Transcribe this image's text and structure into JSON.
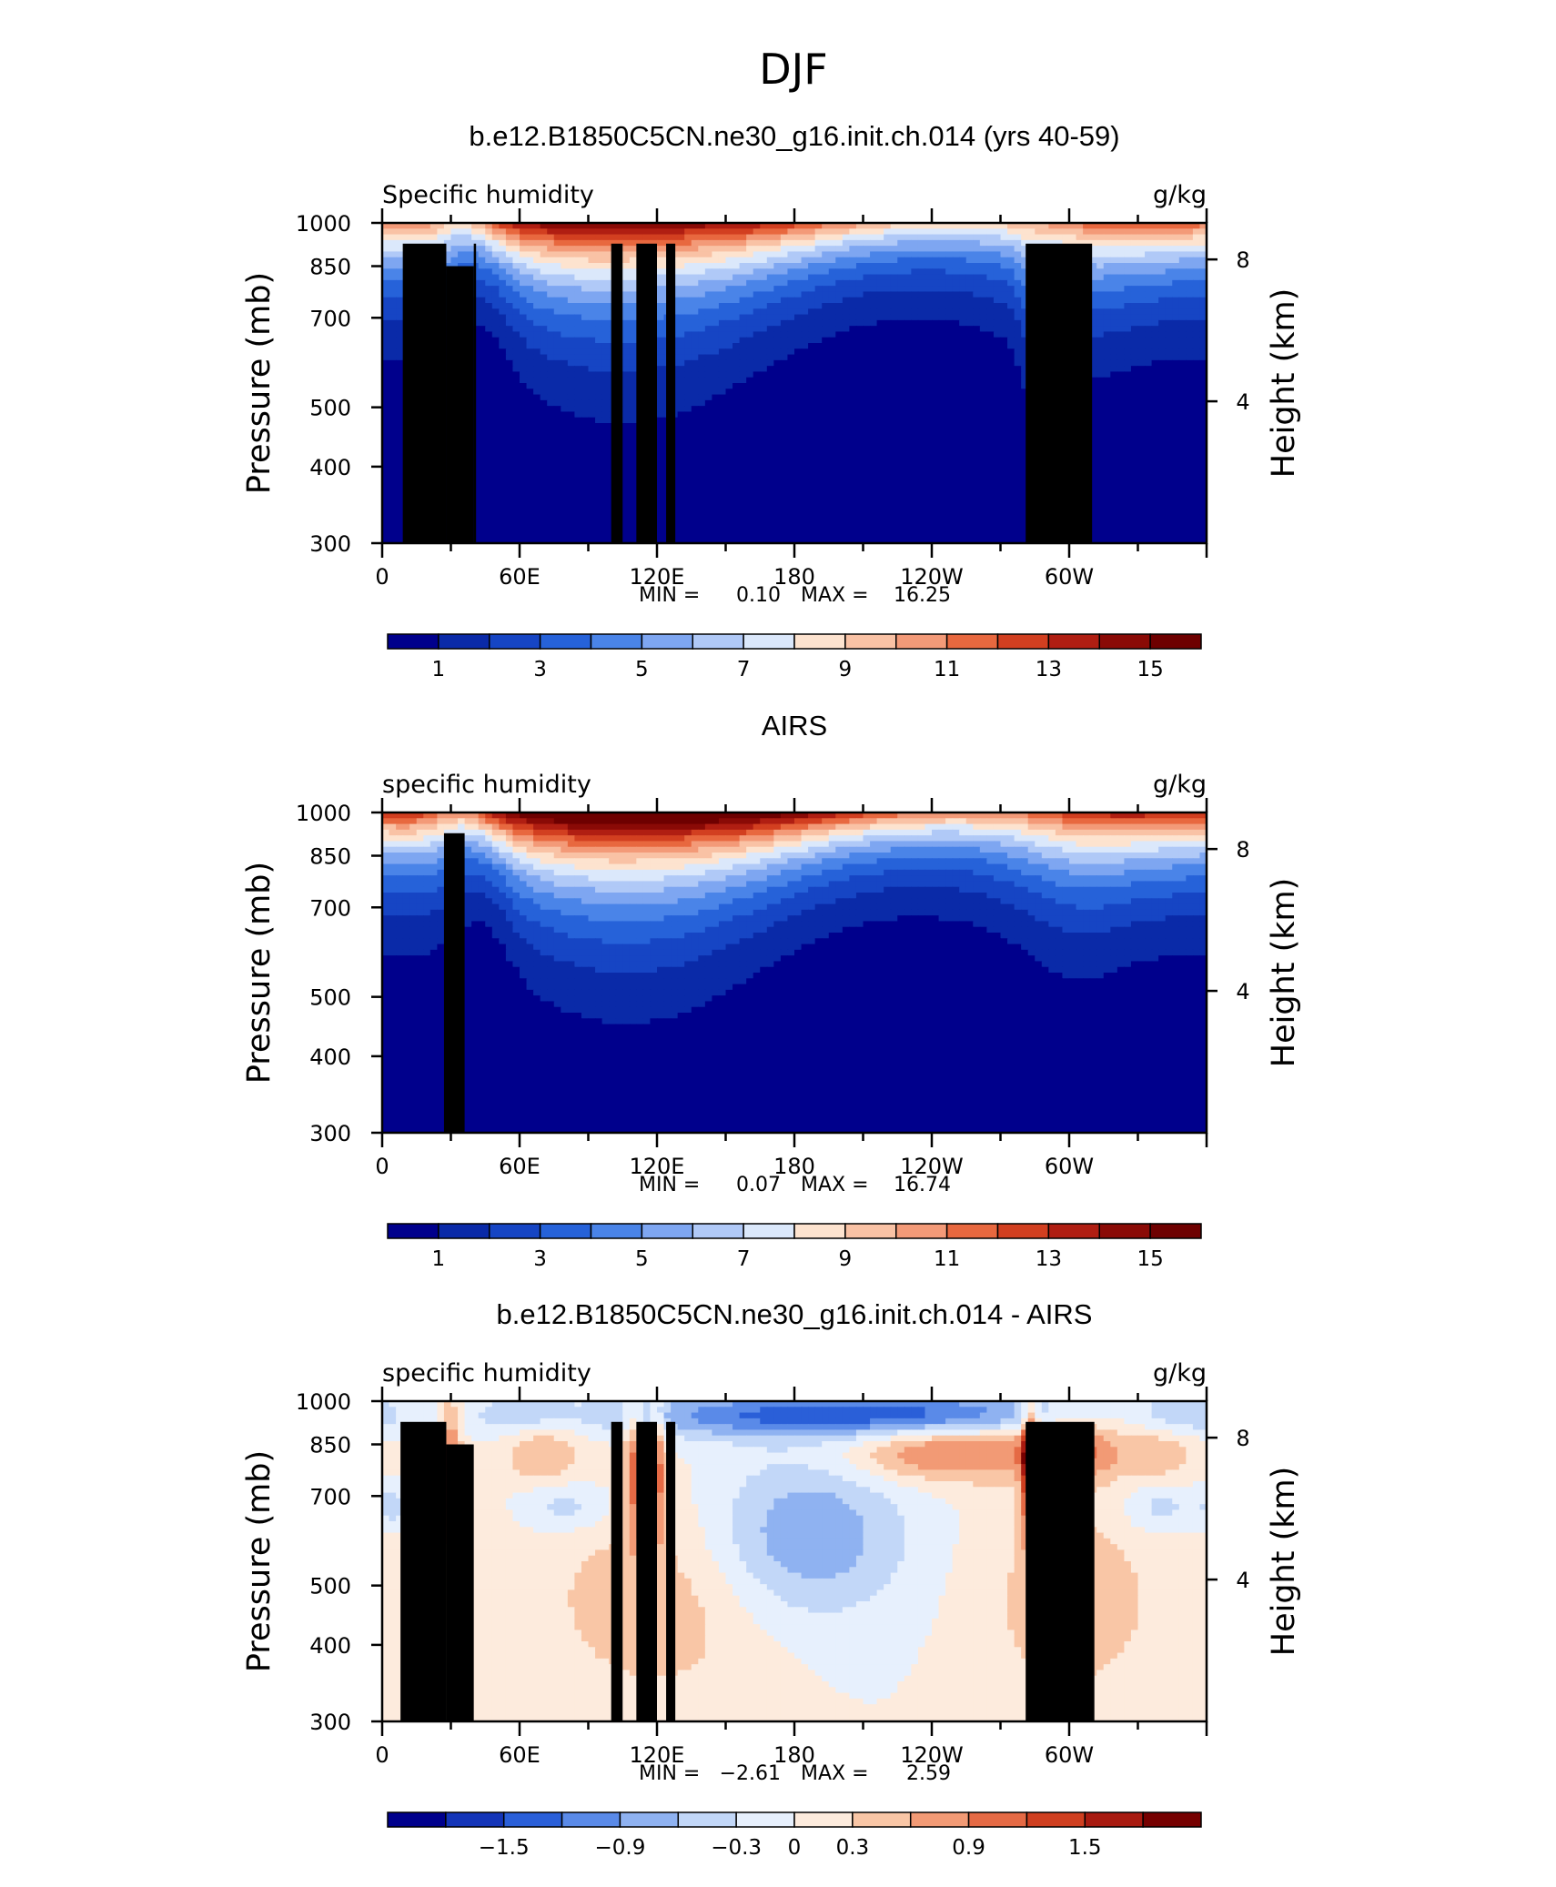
{
  "figure_title": "DJF",
  "colors": {
    "model_obs_palette": [
      "#00008c",
      "#0a2aa8",
      "#1645c4",
      "#2662d9",
      "#4a84e8",
      "#7ea6f1",
      "#b0c9f7",
      "#dbe8fb",
      "#fde3cf",
      "#f9c2a5",
      "#f39a78",
      "#e8683f",
      "#d23f20",
      "#b01e12",
      "#8a0a06",
      "#6e0000"
    ],
    "diff_palette": [
      "#00008c",
      "#1435b8",
      "#2a5fd8",
      "#5a8ae8",
      "#8fb2f1",
      "#c2d7f8",
      "#e7f0fd",
      "#fdebdd",
      "#f9c6a6",
      "#f29a75",
      "#e56a45",
      "#cf3f20",
      "#a81a10",
      "#760000"
    ],
    "topography": "#000000"
  },
  "panels": [
    {
      "title": "b.e12.B1850C5CN.ne30_g16.init.ch.014 (yrs 40-59)",
      "left_label": "Specific humidity",
      "right_label": "g/kg",
      "stats": {
        "min_label": "MIN =",
        "min": "0.10",
        "max_label": "MAX =",
        "max": "16.25"
      },
      "colorbar_labels": [
        "1",
        "3",
        "5",
        "7",
        "9",
        "11",
        "13",
        "15"
      ]
    },
    {
      "title": "AIRS",
      "left_label": "specific humidity",
      "right_label": "g/kg",
      "stats": {
        "min_label": "MIN =",
        "min": "0.07",
        "max_label": "MAX =",
        "max": "16.74"
      },
      "colorbar_labels": [
        "1",
        "3",
        "5",
        "7",
        "9",
        "11",
        "13",
        "15"
      ]
    },
    {
      "title": "b.e12.B1850C5CN.ne30_g16.init.ch.014 - AIRS",
      "left_label": "specific humidity",
      "right_label": "g/kg",
      "stats": {
        "min_label": "MIN =",
        "min": "−2.61",
        "max_label": "MAX =",
        "max": "2.59"
      },
      "colorbar_labels": [
        "−1.5",
        "−0.9",
        "−0.3",
        "0",
        "0.3",
        "0.9",
        "1.5"
      ]
    }
  ],
  "chart_data": [
    {
      "type": "heatmap",
      "title": "b.e12.B1850C5CN.ne30_g16.init.ch.014 (yrs 40-59)",
      "subtitle": "Specific humidity",
      "units": "g/kg",
      "ylabel": "Pressure (mb)",
      "y2label": "Height (km)",
      "x_ticks": [
        "0",
        "60E",
        "120E",
        "180",
        "120W",
        "60W"
      ],
      "x_tick_values": [
        0,
        60,
        120,
        180,
        240,
        300
      ],
      "xlim": [
        0,
        360
      ],
      "y_ticks": [
        300,
        400,
        500,
        700,
        850,
        1000
      ],
      "ylim": [
        1000,
        300
      ],
      "y_scale": "log",
      "y2_ticks": [
        "8",
        "4"
      ],
      "y2_tick_values": [
        8,
        4
      ],
      "levels": [
        1,
        2,
        3,
        4,
        5,
        6,
        7,
        8,
        9,
        10,
        11,
        12,
        13,
        14,
        15
      ],
      "min": 0.1,
      "max": 16.25,
      "colorbar_ticks": [
        1,
        3,
        5,
        7,
        9,
        11,
        13,
        15
      ],
      "topography": [
        {
          "lon_start": 9,
          "lon_end": 28,
          "p_top": 925
        },
        {
          "lon_start": 28,
          "lon_end": 40,
          "p_top": 850
        },
        {
          "lon_start": 40,
          "lon_end": 41,
          "p_top": 925
        },
        {
          "lon_start": 100,
          "lon_end": 105,
          "p_top": 925
        },
        {
          "lon_start": 111,
          "lon_end": 120,
          "p_top": 925
        },
        {
          "lon_start": 124,
          "lon_end": 128,
          "p_top": 925
        },
        {
          "lon_start": 281,
          "lon_end": 310,
          "p_top": 925
        }
      ]
    },
    {
      "type": "heatmap",
      "title": "AIRS",
      "subtitle": "specific humidity",
      "units": "g/kg",
      "ylabel": "Pressure (mb)",
      "y2label": "Height (km)",
      "x_ticks": [
        "0",
        "60E",
        "120E",
        "180",
        "120W",
        "60W"
      ],
      "x_tick_values": [
        0,
        60,
        120,
        180,
        240,
        300
      ],
      "xlim": [
        0,
        360
      ],
      "y_ticks": [
        300,
        400,
        500,
        700,
        850,
        1000
      ],
      "ylim": [
        1000,
        300
      ],
      "y_scale": "log",
      "y2_ticks": [
        "8",
        "4"
      ],
      "y2_tick_values": [
        8,
        4
      ],
      "levels": [
        1,
        2,
        3,
        4,
        5,
        6,
        7,
        8,
        9,
        10,
        11,
        12,
        13,
        14,
        15
      ],
      "min": 0.07,
      "max": 16.74,
      "colorbar_ticks": [
        1,
        3,
        5,
        7,
        9,
        11,
        13,
        15
      ],
      "topography": [
        {
          "lon_start": 27,
          "lon_end": 36,
          "p_top": 925
        }
      ]
    },
    {
      "type": "heatmap",
      "title": "b.e12.B1850C5CN.ne30_g16.init.ch.014 - AIRS",
      "subtitle": "specific humidity",
      "units": "g/kg",
      "ylabel": "Pressure (mb)",
      "y2label": "Height (km)",
      "x_ticks": [
        "0",
        "60E",
        "120E",
        "180",
        "120W",
        "60W"
      ],
      "x_tick_values": [
        0,
        60,
        120,
        180,
        240,
        300
      ],
      "xlim": [
        0,
        360
      ],
      "y_ticks": [
        300,
        400,
        500,
        700,
        850,
        1000
      ],
      "ylim": [
        1000,
        300
      ],
      "y_scale": "log",
      "y2_ticks": [
        "8",
        "4"
      ],
      "y2_tick_values": [
        8,
        4
      ],
      "levels": [
        -1.8,
        -1.5,
        -1.2,
        -0.9,
        -0.6,
        -0.3,
        0,
        0.3,
        0.6,
        0.9,
        1.2,
        1.5,
        1.8
      ],
      "min": -2.61,
      "max": 2.59,
      "colorbar_ticks": [
        -1.5,
        -0.9,
        -0.3,
        0,
        0.3,
        0.9,
        1.5
      ],
      "topography": [
        {
          "lon_start": 8,
          "lon_end": 28,
          "p_top": 925
        },
        {
          "lon_start": 28,
          "lon_end": 40,
          "p_top": 850
        },
        {
          "lon_start": 100,
          "lon_end": 105,
          "p_top": 925
        },
        {
          "lon_start": 111,
          "lon_end": 120,
          "p_top": 925
        },
        {
          "lon_start": 124,
          "lon_end": 128,
          "p_top": 925
        },
        {
          "lon_start": 281,
          "lon_end": 311,
          "p_top": 925
        }
      ]
    }
  ]
}
